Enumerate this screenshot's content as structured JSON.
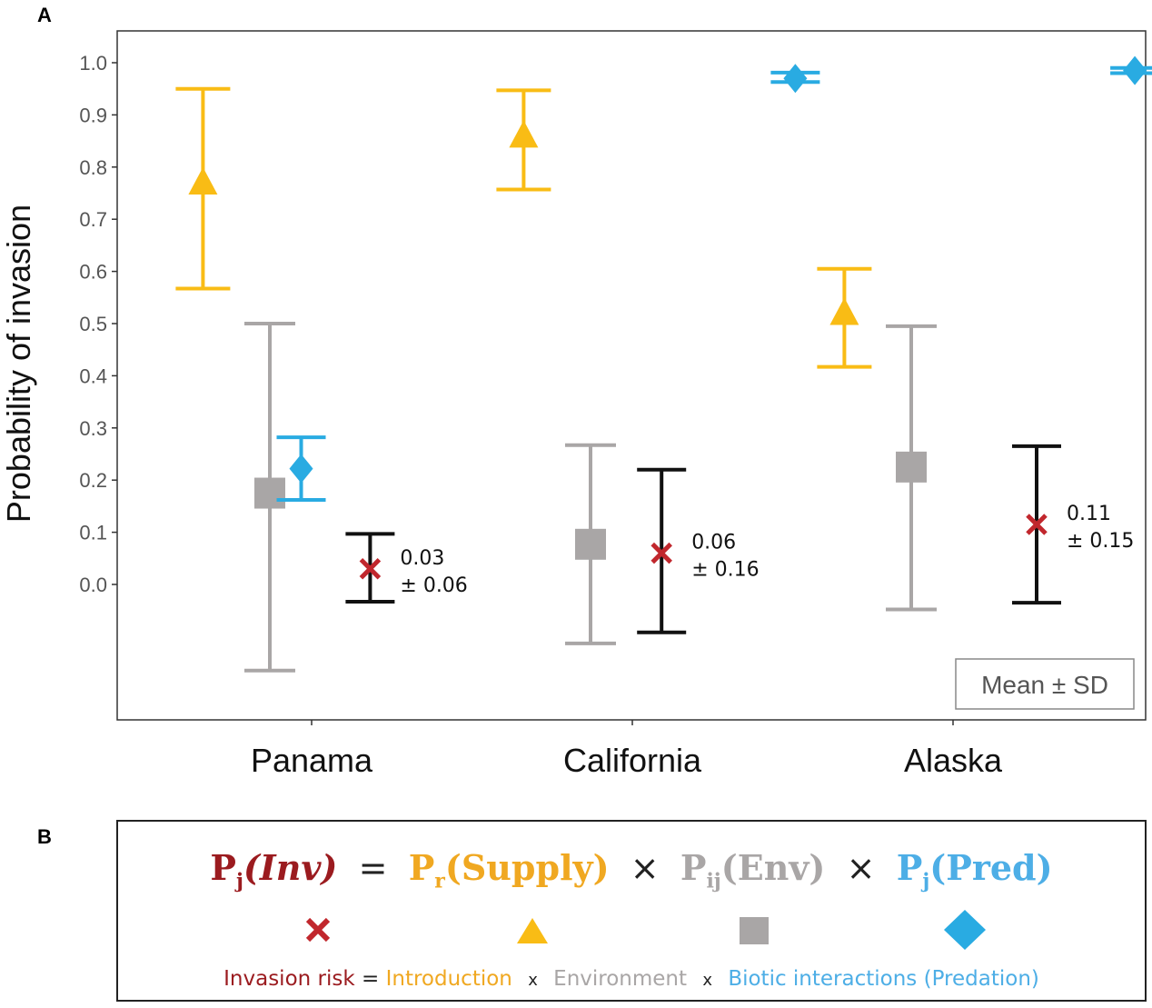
{
  "panel_a_label": "A",
  "panel_b_label": "B",
  "colors": {
    "introduction": "#F9BC15",
    "environment": "#A9A6A6",
    "predation": "#29ABE2",
    "invasion_marker": "#C1272D",
    "invasion_bar": "#111111",
    "invasion_text": "#9B1B1F",
    "axis_text": "#555555"
  },
  "chart_data": {
    "type": "scatter",
    "ylabel": "Probability of invasion",
    "ylim": [
      -0.17,
      1.06
    ],
    "yticks": [
      "0.0",
      "0.1",
      "0.2",
      "0.3",
      "0.4",
      "0.5",
      "0.6",
      "0.7",
      "0.8",
      "0.9",
      "1.0"
    ],
    "categories": [
      "Panama",
      "California",
      "Alaska"
    ],
    "legend_box": "Mean ± SD",
    "legend_position": "bottom-right",
    "grid": false,
    "series": [
      {
        "key": "introduction",
        "marker": "triangle",
        "offset": -0.52,
        "points": [
          {
            "mean": 0.77,
            "lower": 0.567,
            "upper": 0.95
          },
          {
            "mean": 0.86,
            "lower": 0.757,
            "upper": 0.947
          },
          {
            "mean": 0.52,
            "lower": 0.417,
            "upper": 0.605
          }
        ]
      },
      {
        "key": "environment",
        "marker": "square",
        "offset": -0.2,
        "points": [
          {
            "mean": 0.175,
            "lower": -0.165,
            "upper": 0.5
          },
          {
            "mean": 0.077,
            "lower": -0.113,
            "upper": 0.267
          },
          {
            "mean": 0.225,
            "lower": -0.048,
            "upper": 0.495
          }
        ]
      },
      {
        "key": "predation",
        "marker": "diamond",
        "offset": [
          -0.05,
          0.78,
          0.87
        ],
        "points": [
          {
            "mean": 0.222,
            "lower": 0.162,
            "upper": 0.282
          },
          {
            "mean": 0.97,
            "lower": 0.963,
            "upper": 0.981
          },
          {
            "mean": 0.985,
            "lower": 0.98,
            "upper": 0.99
          }
        ]
      },
      {
        "key": "invasion",
        "marker": "cross",
        "offset": [
          0.28,
          0.14,
          0.4
        ],
        "points": [
          {
            "mean": 0.03,
            "lower": -0.033,
            "upper": 0.097
          },
          {
            "mean": 0.06,
            "lower": -0.092,
            "upper": 0.22
          },
          {
            "mean": 0.115,
            "lower": -0.035,
            "upper": 0.265
          }
        ],
        "labels": [
          [
            "0.03",
            "± 0.06"
          ],
          [
            "0.06",
            "± 0.16"
          ],
          [
            "0.11",
            "± 0.15"
          ]
        ]
      }
    ]
  },
  "formula": {
    "inv_p": "P",
    "inv_sub": "j",
    "inv_arg": "(Inv)",
    "equals": "=",
    "supply_p": "P",
    "supply_sub": "r",
    "supply_arg": "(Supply)",
    "times": "×",
    "env_p": "P",
    "env_sub": "ij",
    "env_arg": "(Env)",
    "pred_p": "P",
    "pred_sub": "j",
    "pred_arg": "(Pred)"
  },
  "caption": {
    "invasion": "Invasion risk",
    "eq": "=",
    "introduction": "Introduction",
    "x": "x",
    "environment": "Environment",
    "biotic": "Biotic interactions (Predation)"
  }
}
